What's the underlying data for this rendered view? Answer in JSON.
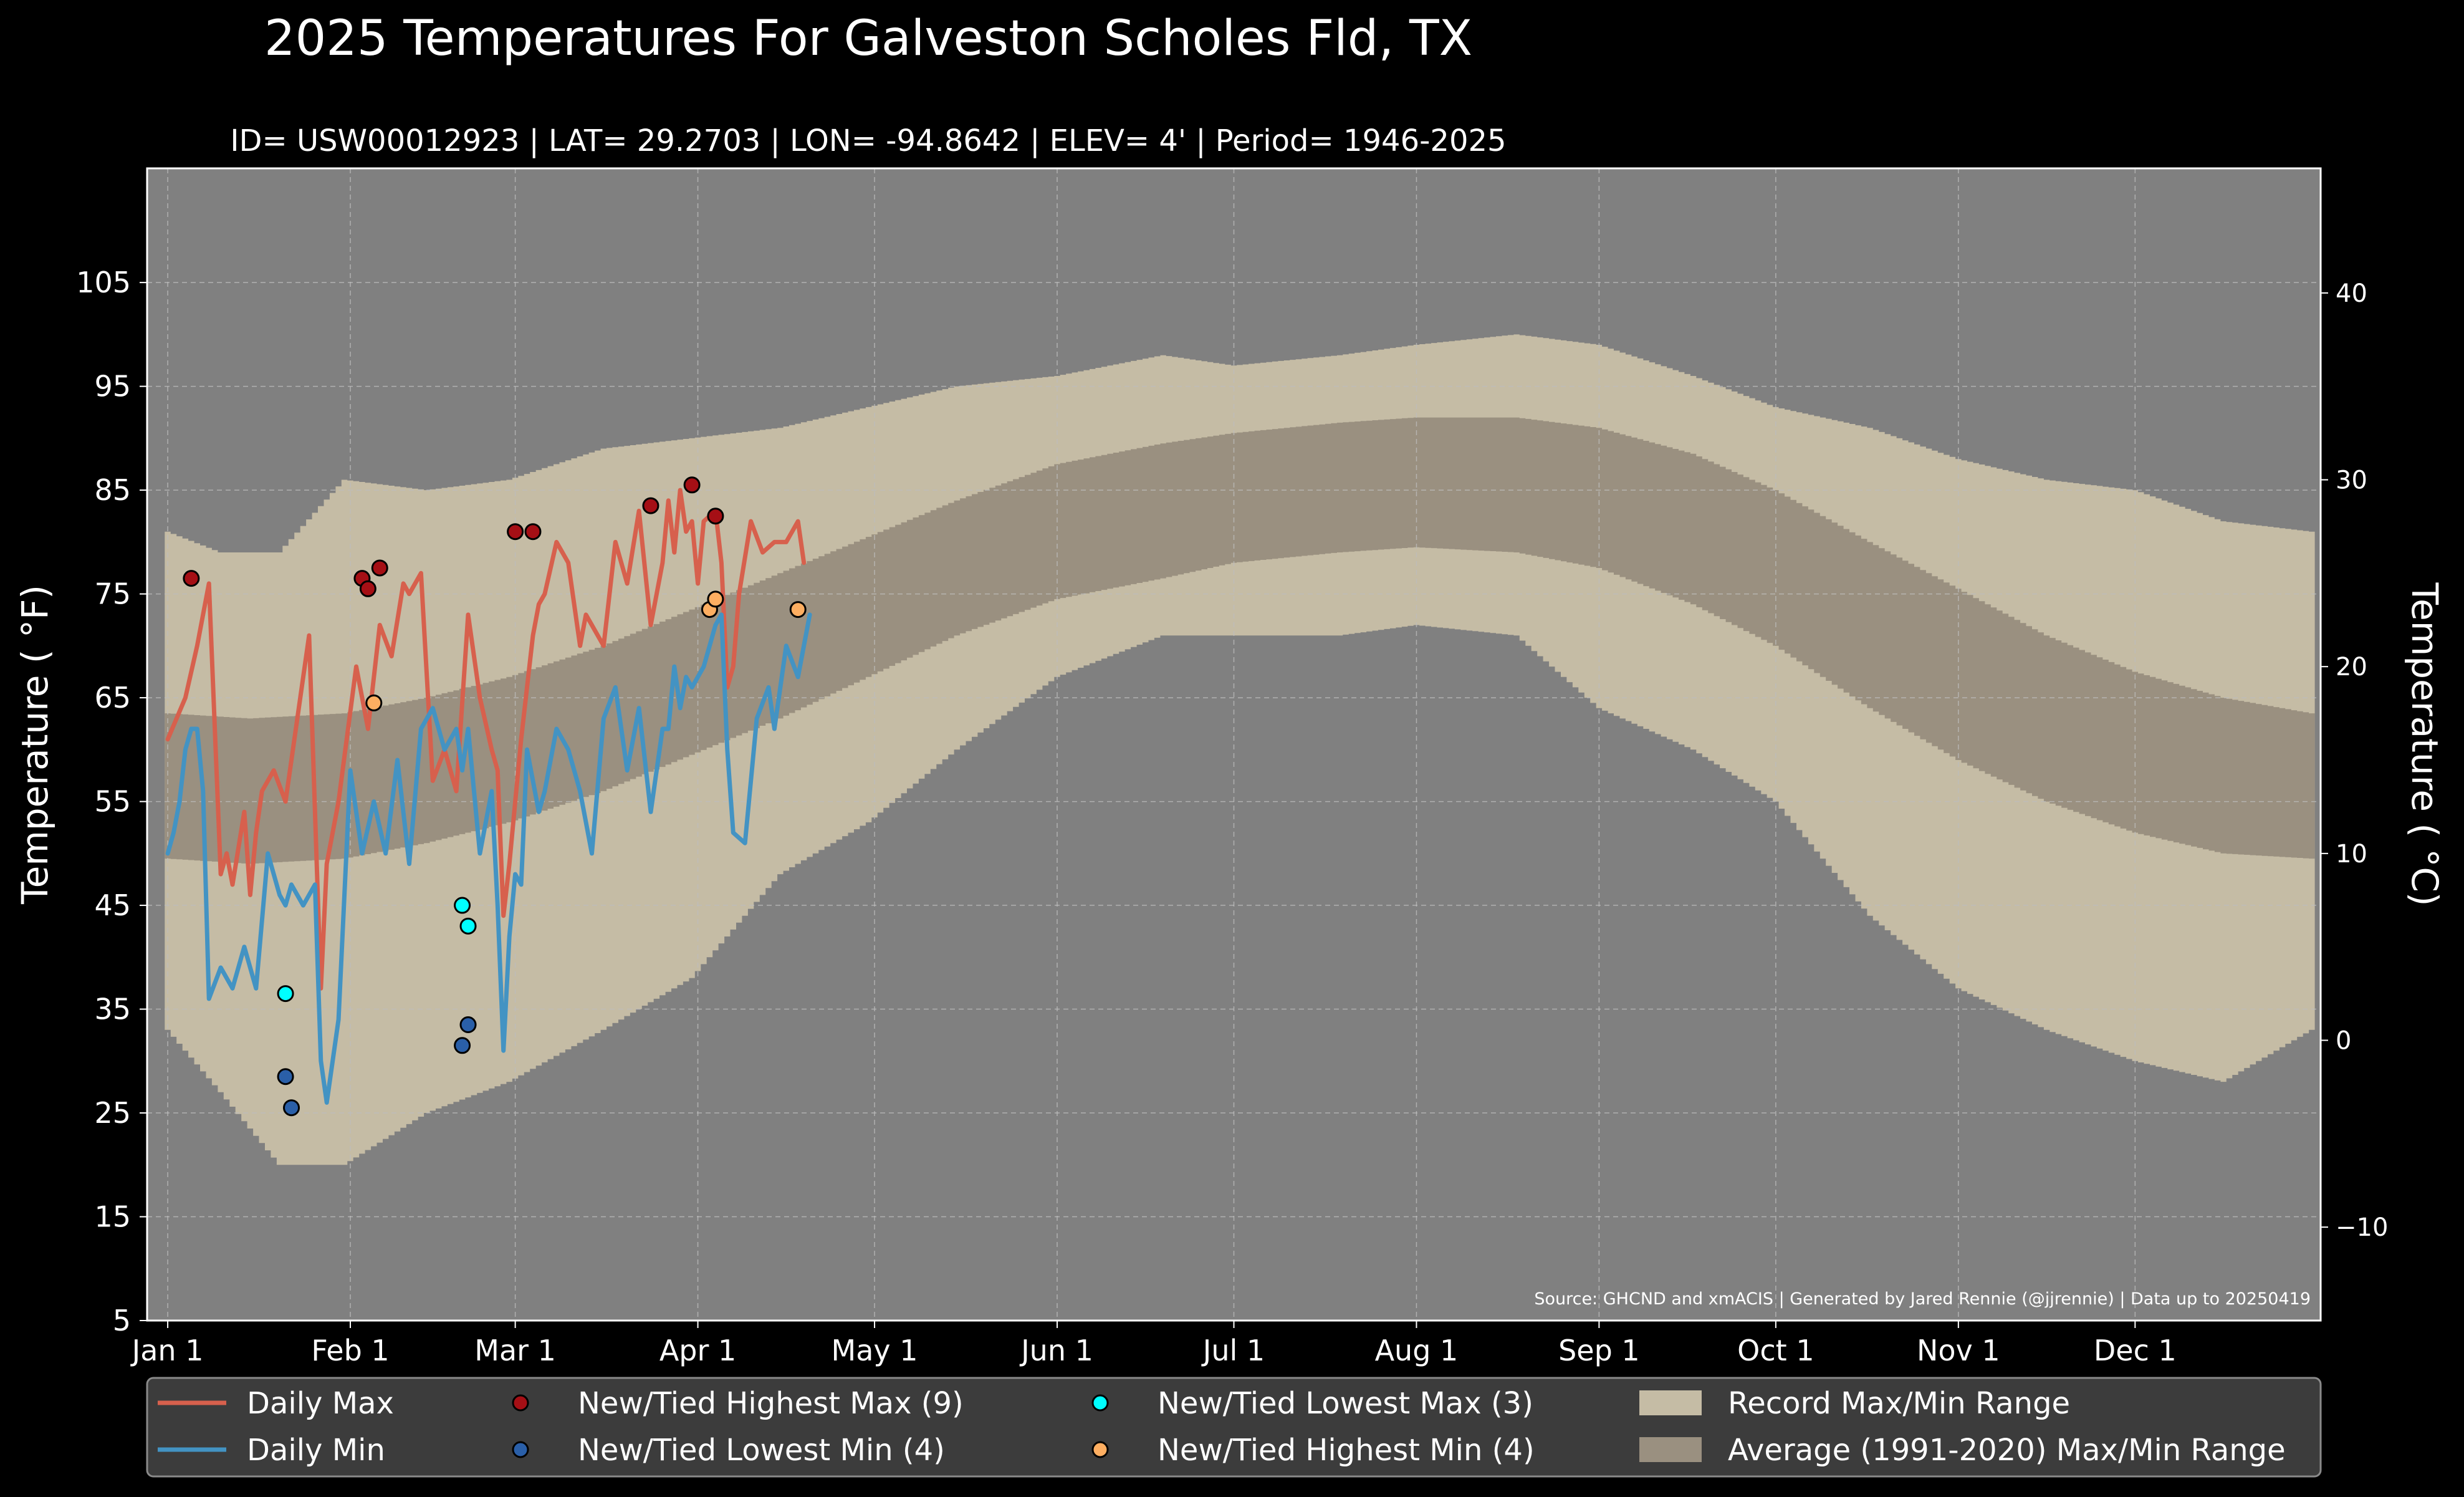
{
  "chart_data": {
    "type": "line",
    "title": "2025 Temperatures For Galveston Scholes Fld, TX",
    "subtitle": "ID= USW00012923 | LAT= 29.2703 | LON= -94.8642 | ELEV= 4' | Period= 1946-2025",
    "ylabel": "Temperature ( $^\\circ$F)",
    "ylabel_display": "Temperature ( °F)",
    "y2label_display": "Temperature ( °C)",
    "source": "Source: GHCND and xmACIS | Generated by Jared Rennie (@jjrennie) | Data up to 20250419",
    "ylim": [
      5,
      116
    ],
    "y2lim": [
      -15,
      46.67
    ],
    "xlim": [
      -2.5,
      366.5
    ],
    "yticks": [
      5,
      15,
      25,
      35,
      45,
      55,
      65,
      75,
      85,
      95,
      105
    ],
    "y2ticks": [
      -10,
      0,
      10,
      20,
      30,
      40
    ],
    "y2ticklabels": [
      "−10",
      "0",
      "10",
      "20",
      "30",
      "40"
    ],
    "xticks": [
      {
        "label": "Jan 1",
        "day": 1
      },
      {
        "label": "Feb 1",
        "day": 32
      },
      {
        "label": "Mar 1",
        "day": 60
      },
      {
        "label": "Apr 1",
        "day": 91
      },
      {
        "label": "May 1",
        "day": 121
      },
      {
        "label": "Jun 1",
        "day": 152
      },
      {
        "label": "Jul 1",
        "day": 182
      },
      {
        "label": "Aug 1",
        "day": 213
      },
      {
        "label": "Sep 1",
        "day": 244
      },
      {
        "label": "Oct 1",
        "day": 274
      },
      {
        "label": "Nov 1",
        "day": 305
      },
      {
        "label": "Dec 1",
        "day": 335
      }
    ],
    "grid": true,
    "legend_position": "bottom",
    "colors": {
      "background": "#000000",
      "plot_bg": "#808080",
      "record_band": "#c5bca5",
      "normal_band": "#9a9080",
      "daily_max": "#d7604d",
      "daily_min": "#4393c3",
      "highest_max": "#a50f15",
      "lowest_min": "#2a5fa8",
      "lowest_max": "#00ffff",
      "highest_min": "#fdae61"
    },
    "record_range": {
      "days": [
        1,
        10,
        20,
        31,
        45,
        59,
        75,
        90,
        105,
        120,
        135,
        152,
        170,
        182,
        200,
        213,
        230,
        244,
        260,
        274,
        290,
        305,
        320,
        335,
        350,
        365
      ],
      "max": [
        81,
        79,
        79,
        86,
        85,
        86,
        89,
        90,
        91,
        93,
        95,
        96,
        98,
        97,
        98,
        99,
        100,
        99,
        96,
        93,
        91,
        88,
        86,
        85,
        82,
        81
      ],
      "min": [
        33,
        27,
        20,
        20,
        25,
        28,
        33,
        38,
        48,
        53,
        60,
        67,
        71,
        71,
        71,
        72,
        71,
        64,
        60,
        55,
        44,
        37,
        33,
        30,
        28,
        33
      ]
    },
    "normal_range": {
      "days": [
        1,
        15,
        31,
        45,
        59,
        75,
        90,
        105,
        120,
        135,
        152,
        170,
        182,
        200,
        213,
        230,
        244,
        260,
        274,
        290,
        305,
        320,
        335,
        350,
        365
      ],
      "max": [
        63.5,
        63,
        63.5,
        65,
        67,
        70,
        73.5,
        77,
        80.5,
        84,
        87.5,
        89.5,
        90.5,
        91.5,
        92,
        92,
        91,
        88.5,
        85,
        80,
        75.5,
        71,
        67.5,
        65,
        63.5
      ],
      "min": [
        49.5,
        49,
        49.5,
        51,
        53,
        56,
        59.5,
        63,
        67,
        71,
        74.5,
        76.5,
        78,
        79,
        79.5,
        79,
        77.5,
        74,
        70,
        64,
        59,
        55,
        52,
        50,
        49.5
      ]
    },
    "series": [
      {
        "name": "Daily Max",
        "x": [
          1,
          4,
          6,
          8,
          10,
          11,
          12,
          14,
          15,
          16,
          17,
          19,
          21,
          23,
          25,
          27,
          28,
          30,
          33,
          35,
          37,
          39,
          41,
          42,
          44,
          46,
          48,
          50,
          52,
          54,
          56,
          57,
          58,
          59,
          60,
          61,
          62,
          63,
          64,
          65,
          67,
          69,
          71,
          72,
          73,
          75,
          77,
          79,
          81,
          83,
          85,
          86,
          87,
          88,
          89,
          90,
          91,
          92,
          94,
          95,
          96,
          97,
          98,
          100,
          102,
          104,
          106,
          108,
          109
        ],
        "values": [
          61,
          65,
          70,
          76,
          48,
          50,
          47,
          54,
          46,
          52,
          56,
          58,
          55,
          63,
          71,
          37,
          49,
          55,
          68,
          62,
          72,
          69,
          76,
          75,
          77,
          57,
          60,
          56,
          73,
          65,
          60,
          58,
          44,
          49,
          55,
          61,
          66,
          71,
          74,
          75,
          80,
          78,
          70,
          73,
          72,
          70,
          80,
          76,
          83,
          72,
          78,
          84,
          79,
          85,
          81,
          82,
          76,
          82,
          83,
          78,
          66,
          68,
          75,
          82,
          79,
          80,
          80,
          82,
          78
        ]
      },
      {
        "name": "Daily Min",
        "x": [
          1,
          2,
          3,
          4,
          5,
          6,
          7,
          8,
          10,
          12,
          14,
          16,
          18,
          20,
          21,
          22,
          24,
          26,
          27,
          28,
          30,
          32,
          34,
          36,
          38,
          40,
          42,
          44,
          46,
          48,
          50,
          51,
          52,
          54,
          56,
          57,
          58,
          59,
          60,
          61,
          62,
          64,
          65,
          67,
          69,
          71,
          73,
          75,
          77,
          79,
          81,
          83,
          85,
          86,
          87,
          88,
          89,
          90,
          92,
          94,
          95,
          96,
          97,
          99,
          101,
          103,
          104,
          106,
          108,
          110
        ],
        "values": [
          50,
          52,
          55,
          60,
          62,
          62,
          56,
          36,
          39,
          37,
          41,
          37,
          50,
          46,
          45,
          47,
          45,
          47,
          30,
          26,
          34,
          58,
          50,
          55,
          50,
          59,
          49,
          62,
          64,
          60,
          62,
          58,
          62,
          50,
          56,
          45,
          31,
          42,
          48,
          47,
          60,
          54,
          56,
          62,
          60,
          56,
          50,
          63,
          66,
          58,
          64,
          54,
          62,
          62,
          68,
          64,
          67,
          66,
          68,
          72,
          73,
          60,
          52,
          51,
          63,
          66,
          62,
          70,
          67,
          73
        ]
      }
    ],
    "markers": [
      {
        "name": "New/Tied Highest Max (9)",
        "points": [
          [
            5,
            76.5
          ],
          [
            34,
            76.5
          ],
          [
            35,
            75.5
          ],
          [
            37,
            77.5
          ],
          [
            60,
            81
          ],
          [
            63,
            81
          ],
          [
            83,
            83.5
          ],
          [
            90,
            85.5
          ],
          [
            94,
            82.5
          ]
        ]
      },
      {
        "name": "New/Tied Lowest Min (4)",
        "points": [
          [
            21,
            28.5
          ],
          [
            22,
            25.5
          ],
          [
            51,
            31.5
          ],
          [
            52,
            33.5
          ]
        ]
      },
      {
        "name": "New/Tied Lowest Max (3)",
        "points": [
          [
            21,
            36.5
          ],
          [
            51,
            45
          ],
          [
            52,
            43
          ]
        ]
      },
      {
        "name": "New/Tied Highest Min (4)",
        "points": [
          [
            36,
            64.5
          ],
          [
            93,
            73.5
          ],
          [
            94,
            74.5
          ],
          [
            108,
            73.5
          ]
        ]
      }
    ],
    "legend": [
      {
        "label": "Daily Max",
        "kind": "line",
        "color": "#d7604d"
      },
      {
        "label": "New/Tied Highest Max (9)",
        "kind": "dot",
        "color": "#a50f15"
      },
      {
        "label": "New/Tied Lowest Max (3)",
        "kind": "dot",
        "color": "#00ffff"
      },
      {
        "label": "Record Max/Min Range",
        "kind": "patch",
        "color": "#c5bca5"
      },
      {
        "label": "Daily Min",
        "kind": "line",
        "color": "#4393c3"
      },
      {
        "label": "New/Tied Lowest Min (4)",
        "kind": "dot",
        "color": "#2a5fa8"
      },
      {
        "label": "New/Tied Highest Min (4)",
        "kind": "dot",
        "color": "#fdae61"
      },
      {
        "label": "Average (1991-2020) Max/Min Range",
        "kind": "patch",
        "color": "#9a9080"
      }
    ]
  }
}
